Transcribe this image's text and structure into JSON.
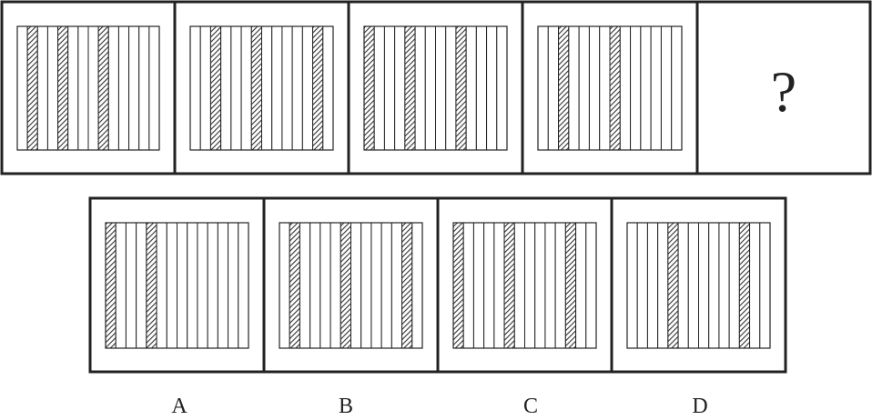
{
  "puzzle": {
    "question_mark": "?",
    "stripe_count": 14,
    "sequence": [
      {
        "shaded": [
          1,
          4,
          8
        ]
      },
      {
        "shaded": [
          2,
          6,
          12
        ]
      },
      {
        "shaded": [
          0,
          4,
          9
        ]
      },
      {
        "shaded": [
          2,
          7
        ]
      }
    ],
    "options": [
      {
        "label": "A",
        "shaded": [
          0,
          4
        ]
      },
      {
        "label": "B",
        "shaded": [
          1,
          6,
          12
        ]
      },
      {
        "label": "C",
        "shaded": [
          0,
          5,
          11
        ]
      },
      {
        "label": "D",
        "shaded": [
          4,
          11
        ]
      }
    ]
  },
  "colors": {
    "border": "#222222",
    "hatch": "#333333",
    "background": "#ffffff"
  }
}
